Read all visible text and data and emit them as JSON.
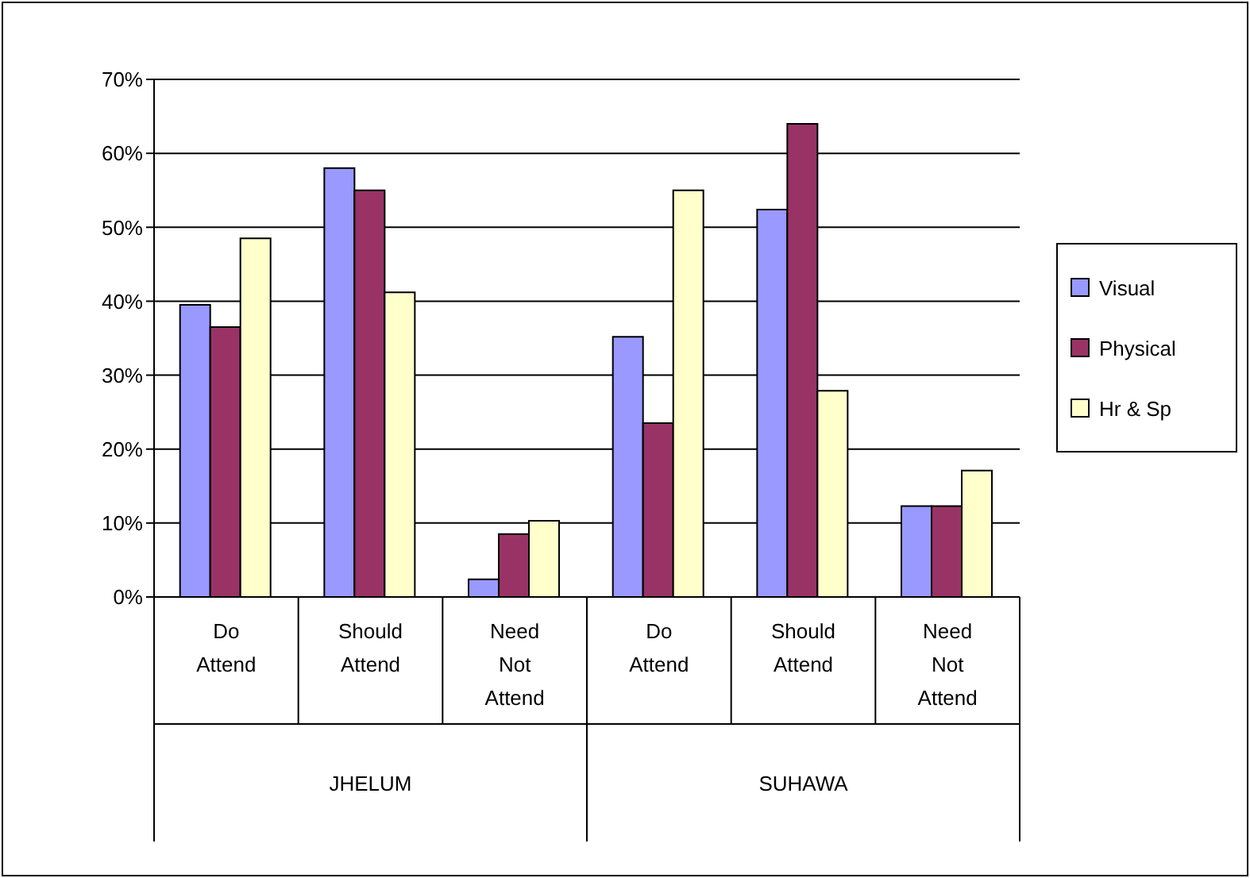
{
  "chart_data": {
    "type": "bar",
    "categories": [
      "Do Attend",
      "Should Attend",
      "Need Not Attend",
      "Do Attend",
      "Should Attend",
      "Need Not Attend"
    ],
    "series": [
      {
        "name": "Visual",
        "color": "#9999ff",
        "values": [
          39.5,
          58,
          2.4,
          35.2,
          52.4,
          12.3
        ]
      },
      {
        "name": "Physical",
        "color": "#993366",
        "values": [
          36.5,
          55,
          8.5,
          23.5,
          64,
          12.3
        ]
      },
      {
        "name": "Hr & Sp",
        "color": "#ffffcc",
        "values": [
          48.5,
          41.2,
          10.3,
          55,
          27.9,
          17.1
        ]
      }
    ],
    "ylim": [
      0,
      70
    ],
    "yticks": [
      {
        "value": 0,
        "label": "0%"
      },
      {
        "value": 10,
        "label": "10%"
      },
      {
        "value": 20,
        "label": "20%"
      },
      {
        "value": 30,
        "label": "30%"
      },
      {
        "value": 40,
        "label": "40%"
      },
      {
        "value": 50,
        "label": "50%"
      },
      {
        "value": 60,
        "label": "60%"
      },
      {
        "value": 70,
        "label": "70%"
      }
    ],
    "annotations": [
      "JHELUM",
      "SUHAWA"
    ],
    "grid": "y",
    "legend": "right"
  }
}
